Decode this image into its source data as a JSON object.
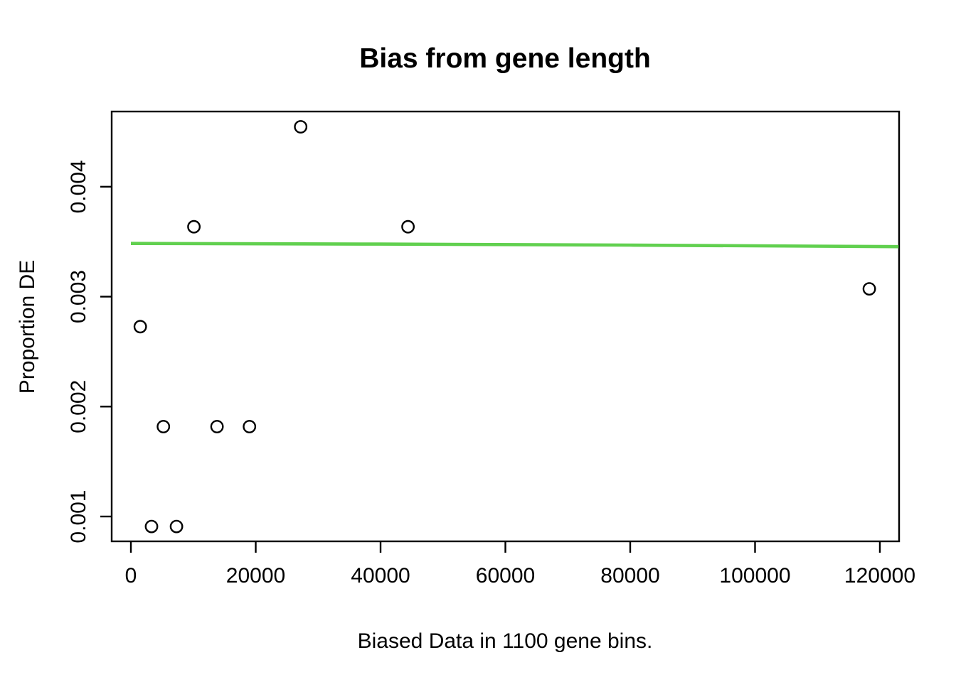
{
  "chart_data": {
    "type": "scatter",
    "title": "Bias from gene length",
    "xlabel": "Biased Data in 1100 gene bins.",
    "ylabel": "Proportion DE",
    "x_ticks": {
      "values": [
        0,
        20000,
        40000,
        60000,
        80000,
        100000,
        120000
      ],
      "labels": [
        "0",
        "20000",
        "40000",
        "60000",
        "80000",
        "100000",
        "120000"
      ]
    },
    "y_ticks": {
      "values": [
        0.001,
        0.002,
        0.003,
        0.004
      ],
      "labels": [
        "0.001",
        "0.002",
        "0.003",
        "0.004"
      ]
    },
    "xlim": [
      -3080,
      123080
    ],
    "ylim": [
      0.000774,
      0.004684
    ],
    "grid": false,
    "legend": "none",
    "points": [
      {
        "x": 1500,
        "y": 0.002727
      },
      {
        "x": 3300,
        "y": 0.000909
      },
      {
        "x": 5200,
        "y": 0.001818
      },
      {
        "x": 7300,
        "y": 0.000909
      },
      {
        "x": 10100,
        "y": 0.003636
      },
      {
        "x": 13800,
        "y": 0.001818
      },
      {
        "x": 19000,
        "y": 0.001818
      },
      {
        "x": 27200,
        "y": 0.004545
      },
      {
        "x": 44400,
        "y": 0.003636
      },
      {
        "x": 118300,
        "y": 0.003071
      }
    ],
    "trend_line": {
      "name": "fitted-bias-curve",
      "color": "#61D04F",
      "points": [
        {
          "x": 0,
          "y": 0.003484
        },
        {
          "x": 40000,
          "y": 0.003478
        },
        {
          "x": 80000,
          "y": 0.003469
        },
        {
          "x": 123000,
          "y": 0.003455
        }
      ]
    },
    "point_style": {
      "shape": "open-circle",
      "color": "#000000"
    },
    "frame_color": "#000000",
    "background_color": "#FFFFFF"
  }
}
